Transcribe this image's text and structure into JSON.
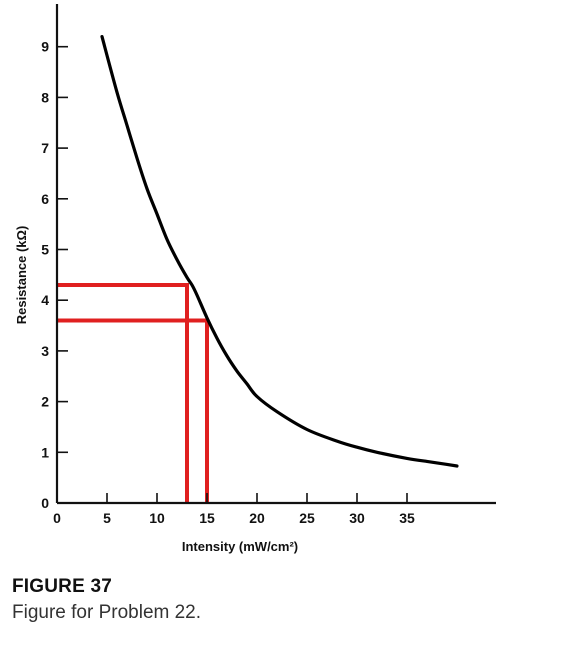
{
  "chart_data": {
    "type": "line",
    "xlabel": "Intensity (mW/cm²)",
    "ylabel": "Resistance (kΩ)",
    "xlim": [
      0,
      43
    ],
    "ylim": [
      0,
      9.5
    ],
    "x_ticks": [
      0,
      5,
      10,
      15,
      20,
      25,
      30,
      35
    ],
    "y_ticks": [
      0,
      1,
      2,
      3,
      4,
      5,
      6,
      7,
      8,
      9
    ],
    "grid": false,
    "series": [
      {
        "color": "#000000",
        "x": [
          4.5,
          6,
          7,
          8,
          9,
          10,
          11,
          12,
          13,
          13.5,
          14,
          15,
          16,
          17,
          18,
          19,
          20,
          22,
          25,
          28,
          30,
          32,
          35,
          37,
          38,
          40
        ],
        "y": [
          9.2,
          8.1,
          7.45,
          6.8,
          6.2,
          5.7,
          5.2,
          4.8,
          4.45,
          4.3,
          4.1,
          3.65,
          3.25,
          2.9,
          2.6,
          2.35,
          2.1,
          1.8,
          1.45,
          1.22,
          1.1,
          1.0,
          0.88,
          0.82,
          0.79,
          0.73
        ]
      }
    ],
    "annotations": [
      {
        "type": "reference-lines",
        "color": "#e02020",
        "x": 13,
        "y": 4.3
      },
      {
        "type": "reference-lines",
        "color": "#e02020",
        "x": 15,
        "y": 3.6
      }
    ]
  },
  "caption": {
    "title": "FIGURE 37",
    "text": "Figure for Problem 22."
  }
}
